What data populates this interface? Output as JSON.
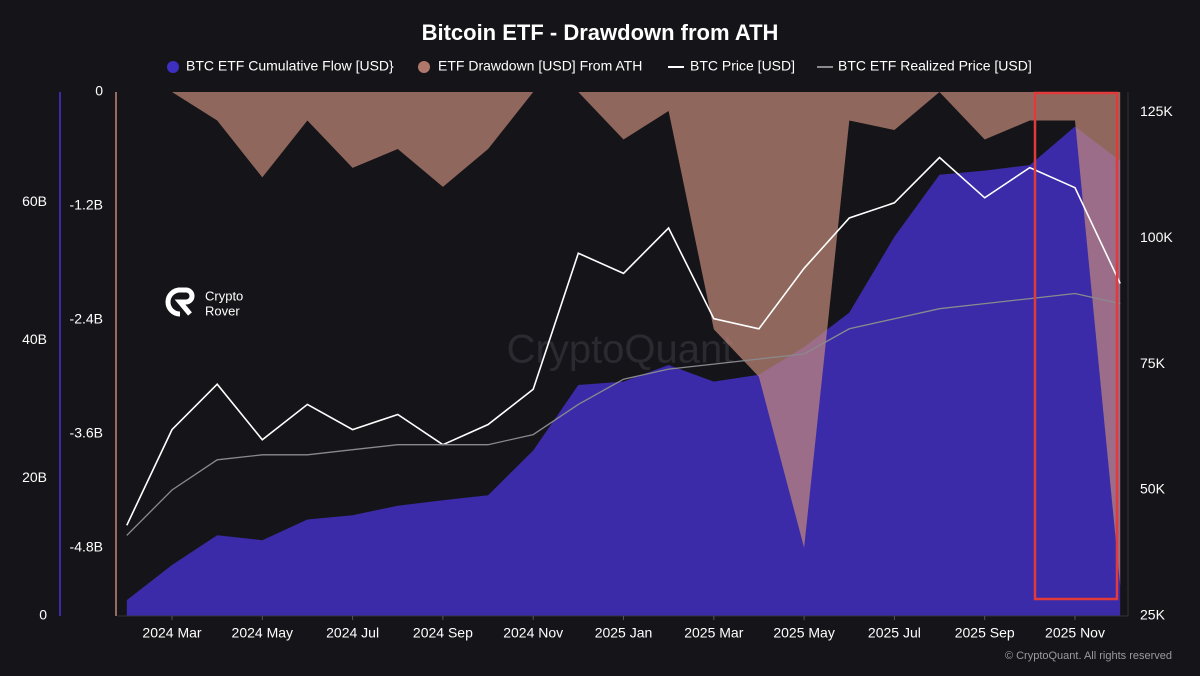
{
  "chart_data": {
    "type": "combo",
    "title": "Bitcoin ETF - Drawdown from ATH",
    "watermark": "CryptoQuant",
    "logo_text": [
      "Crypto",
      "Rover"
    ],
    "copyright": "© CryptoQuant. All rights reserved",
    "x": [
      "2024-01",
      "2024-02",
      "2024-03",
      "2024-04",
      "2024-05",
      "2024-06",
      "2024-07",
      "2024-08",
      "2024-09",
      "2024-10",
      "2024-11",
      "2024-12",
      "2025-01",
      "2025-02",
      "2025-03",
      "2025-04",
      "2025-05",
      "2025-06",
      "2025-07",
      "2025-08",
      "2025-09",
      "2025-10",
      "2025-11"
    ],
    "xticks": [
      {
        "value": "2024-03",
        "label": "2024 Mar"
      },
      {
        "value": "2024-05",
        "label": "2024 May"
      },
      {
        "value": "2024-07",
        "label": "2024 Jul"
      },
      {
        "value": "2024-09",
        "label": "2024 Sep"
      },
      {
        "value": "2024-11",
        "label": "2024 Nov"
      },
      {
        "value": "2025-01",
        "label": "2025 Jan"
      },
      {
        "value": "2025-03",
        "label": "2025 Mar"
      },
      {
        "value": "2025-05",
        "label": "2025 May"
      },
      {
        "value": "2025-07",
        "label": "2025 Jul"
      },
      {
        "value": "2025-09",
        "label": "2025 Sep"
      },
      {
        "value": "2025-11",
        "label": "2025 Nov"
      }
    ],
    "ylim": [
      0,
      76000000000
    ],
    "yticks": [
      0,
      {
        "value": 20000000000,
        "label": "20B"
      },
      {
        "value": 40000000000,
        "label": "40B"
      },
      {
        "value": 60000000000,
        "label": "60B"
      }
    ],
    "y2lim": [
      -5520000000,
      0
    ],
    "y2ticks": [
      0,
      {
        "value": -1200000000,
        "label": "-1.2B"
      },
      {
        "value": -2400000000,
        "label": "-2.4B"
      },
      {
        "value": -3600000000,
        "label": "-3.6B"
      },
      {
        "value": -4800000000,
        "label": "-4.8B"
      }
    ],
    "y3lim": [
      25000,
      129000
    ],
    "y3ticks": [
      {
        "value": 25000,
        "label": "25K"
      },
      {
        "value": 50000,
        "label": "50K"
      },
      {
        "value": 75000,
        "label": "75K"
      },
      {
        "value": 100000,
        "label": "100K"
      },
      {
        "value": 125000,
        "label": "125K"
      }
    ],
    "grid": false,
    "series": [
      {
        "name": "BTC ETF Cumulative Flow [USD}",
        "type": "area",
        "axis": "y",
        "color": "#3b2ba8",
        "values": [
          2300000000,
          7400000000,
          11700000000,
          11000000000,
          14000000000,
          14600000000,
          16000000000,
          16800000000,
          17500000000,
          24000000000,
          33500000000,
          34000000000,
          36400000000,
          34000000000,
          35000000000,
          39000000000,
          44000000000,
          55000000000,
          64000000000,
          64600000000,
          65400000000,
          71000000000,
          66000000000
        ]
      },
      {
        "name": "ETF Drawdown [USD] From ATH",
        "type": "area",
        "axis": "y2",
        "color": "#c48a7a",
        "values": [
          0,
          0,
          -300000000,
          -900000000,
          -300000000,
          -800000000,
          -600000000,
          -1000000000,
          -600000000,
          0,
          0,
          -500000000,
          -200000000,
          -2500000000,
          -3000000000,
          -4800000000,
          -300000000,
          -400000000,
          0,
          -500000000,
          -300000000,
          -300000000,
          -5200000000
        ]
      },
      {
        "name": "BTC Price [USD]",
        "type": "line",
        "axis": "y3",
        "color": "#ffffff",
        "values": [
          43000,
          62000,
          71000,
          60000,
          67000,
          62000,
          65000,
          59000,
          63000,
          70000,
          97000,
          93000,
          102000,
          84000,
          82000,
          94000,
          104000,
          107000,
          116000,
          108000,
          114000,
          110000,
          91000
        ]
      },
      {
        "name": "BTC ETF Realized Price [USD]",
        "type": "line",
        "axis": "y3",
        "color": "#8a8a8e",
        "values": [
          41000,
          50000,
          56000,
          57000,
          57000,
          58000,
          59000,
          59000,
          59000,
          61000,
          67000,
          72000,
          74000,
          75000,
          76000,
          77000,
          82000,
          84000,
          86000,
          87000,
          88000,
          89000,
          87000
        ]
      }
    ]
  }
}
